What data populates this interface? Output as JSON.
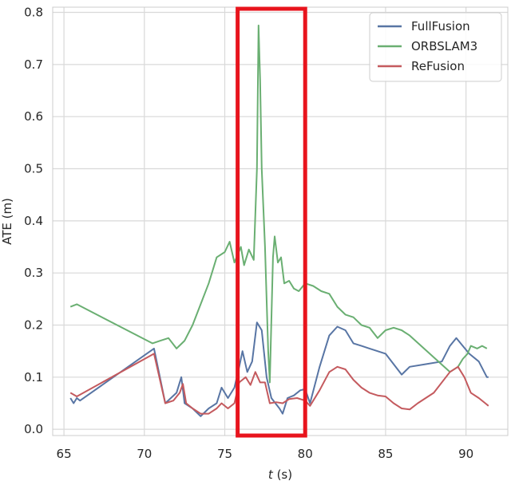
{
  "chart_data": {
    "type": "line",
    "title": "",
    "xlabel": "t (s)",
    "ylabel": "ATE (m)",
    "xlim": [
      64.3,
      92.6
    ],
    "ylim": [
      -0.012,
      0.81
    ],
    "xticks": [
      65,
      70,
      75,
      80,
      85,
      90
    ],
    "yticks": [
      0.0,
      0.1,
      0.2,
      0.3,
      0.4,
      0.5,
      0.6,
      0.7,
      0.8
    ],
    "xtick_labels": [
      "65",
      "70",
      "75",
      "80",
      "85",
      "90"
    ],
    "ytick_labels": [
      "0.0",
      "0.1",
      "0.2",
      "0.3",
      "0.4",
      "0.5",
      "0.6",
      "0.7",
      "0.8"
    ],
    "grid": true,
    "legend_position": "top-right",
    "highlight_box": {
      "x_range": [
        75.8,
        80.0
      ],
      "color": "#e8141d"
    },
    "series": [
      {
        "name": "FullFusion",
        "color": "#5875a4",
        "points": [
          [
            65.4,
            0.06
          ],
          [
            65.6,
            0.05
          ],
          [
            65.8,
            0.06
          ],
          [
            66.0,
            0.055
          ],
          [
            70.6,
            0.155
          ],
          [
            71.3,
            0.05
          ],
          [
            72.0,
            0.07
          ],
          [
            72.3,
            0.1
          ],
          [
            72.5,
            0.05
          ],
          [
            73.0,
            0.04
          ],
          [
            73.5,
            0.025
          ],
          [
            74.0,
            0.04
          ],
          [
            74.5,
            0.05
          ],
          [
            74.8,
            0.08
          ],
          [
            75.2,
            0.06
          ],
          [
            75.6,
            0.08
          ],
          [
            75.9,
            0.12
          ],
          [
            76.1,
            0.15
          ],
          [
            76.4,
            0.11
          ],
          [
            76.7,
            0.13
          ],
          [
            77.0,
            0.205
          ],
          [
            77.3,
            0.19
          ],
          [
            77.6,
            0.1
          ],
          [
            77.9,
            0.06
          ],
          [
            78.4,
            0.04
          ],
          [
            78.6,
            0.03
          ],
          [
            78.9,
            0.06
          ],
          [
            79.3,
            0.065
          ],
          [
            79.7,
            0.075
          ],
          [
            80.0,
            0.077
          ],
          [
            80.3,
            0.05
          ],
          [
            80.9,
            0.12
          ],
          [
            81.5,
            0.18
          ],
          [
            82.0,
            0.197
          ],
          [
            82.5,
            0.19
          ],
          [
            83.0,
            0.165
          ],
          [
            83.5,
            0.16
          ],
          [
            84.0,
            0.155
          ],
          [
            84.5,
            0.15
          ],
          [
            85.0,
            0.145
          ],
          [
            85.5,
            0.125
          ],
          [
            86.0,
            0.105
          ],
          [
            86.5,
            0.12
          ],
          [
            87.5,
            0.125
          ],
          [
            88.5,
            0.13
          ],
          [
            89.0,
            0.16
          ],
          [
            89.4,
            0.175
          ],
          [
            89.8,
            0.16
          ],
          [
            90.2,
            0.145
          ],
          [
            90.8,
            0.13
          ],
          [
            91.3,
            0.1
          ],
          [
            91.4,
            0.1
          ]
        ]
      },
      {
        "name": "ORBSLAM3",
        "color": "#6aaf72",
        "points": [
          [
            65.4,
            0.235
          ],
          [
            65.8,
            0.24
          ],
          [
            70.5,
            0.165
          ],
          [
            71.0,
            0.17
          ],
          [
            71.5,
            0.175
          ],
          [
            72.0,
            0.155
          ],
          [
            72.5,
            0.17
          ],
          [
            73.0,
            0.2
          ],
          [
            73.5,
            0.24
          ],
          [
            74.0,
            0.28
          ],
          [
            74.5,
            0.33
          ],
          [
            75.0,
            0.34
          ],
          [
            75.3,
            0.36
          ],
          [
            75.6,
            0.32
          ],
          [
            76.0,
            0.35
          ],
          [
            76.2,
            0.315
          ],
          [
            76.5,
            0.345
          ],
          [
            76.8,
            0.325
          ],
          [
            77.0,
            0.5
          ],
          [
            77.1,
            0.775
          ],
          [
            77.2,
            0.67
          ],
          [
            77.3,
            0.5
          ],
          [
            77.5,
            0.35
          ],
          [
            77.7,
            0.15
          ],
          [
            77.8,
            0.09
          ],
          [
            78.0,
            0.33
          ],
          [
            78.1,
            0.37
          ],
          [
            78.3,
            0.32
          ],
          [
            78.5,
            0.33
          ],
          [
            78.7,
            0.28
          ],
          [
            79.0,
            0.285
          ],
          [
            79.3,
            0.27
          ],
          [
            79.6,
            0.265
          ],
          [
            80.0,
            0.28
          ],
          [
            80.5,
            0.275
          ],
          [
            81.0,
            0.265
          ],
          [
            81.5,
            0.26
          ],
          [
            82.0,
            0.235
          ],
          [
            82.5,
            0.22
          ],
          [
            83.0,
            0.215
          ],
          [
            83.5,
            0.2
          ],
          [
            84.0,
            0.195
          ],
          [
            84.5,
            0.175
          ],
          [
            85.0,
            0.19
          ],
          [
            85.5,
            0.195
          ],
          [
            86.0,
            0.19
          ],
          [
            86.5,
            0.18
          ],
          [
            89.0,
            0.11
          ],
          [
            89.5,
            0.12
          ],
          [
            89.8,
            0.135
          ],
          [
            90.1,
            0.145
          ],
          [
            90.3,
            0.16
          ],
          [
            90.7,
            0.155
          ],
          [
            91.0,
            0.16
          ],
          [
            91.3,
            0.155
          ]
        ]
      },
      {
        "name": "ReFusion",
        "color": "#c45a5e",
        "points": [
          [
            65.4,
            0.07
          ],
          [
            65.8,
            0.063
          ],
          [
            70.6,
            0.145
          ],
          [
            71.3,
            0.05
          ],
          [
            71.8,
            0.055
          ],
          [
            72.2,
            0.07
          ],
          [
            72.4,
            0.087
          ],
          [
            72.6,
            0.05
          ],
          [
            73.0,
            0.04
          ],
          [
            73.5,
            0.03
          ],
          [
            74.0,
            0.03
          ],
          [
            74.5,
            0.04
          ],
          [
            74.8,
            0.05
          ],
          [
            75.2,
            0.04
          ],
          [
            75.6,
            0.05
          ],
          [
            75.9,
            0.09
          ],
          [
            76.3,
            0.1
          ],
          [
            76.6,
            0.085
          ],
          [
            76.9,
            0.11
          ],
          [
            77.2,
            0.09
          ],
          [
            77.5,
            0.09
          ],
          [
            77.8,
            0.05
          ],
          [
            78.2,
            0.052
          ],
          [
            78.6,
            0.05
          ],
          [
            79.0,
            0.058
          ],
          [
            79.5,
            0.06
          ],
          [
            80.0,
            0.055
          ],
          [
            80.3,
            0.045
          ],
          [
            80.9,
            0.075
          ],
          [
            81.5,
            0.11
          ],
          [
            82.0,
            0.12
          ],
          [
            82.5,
            0.115
          ],
          [
            83.0,
            0.095
          ],
          [
            83.5,
            0.08
          ],
          [
            84.0,
            0.07
          ],
          [
            84.5,
            0.065
          ],
          [
            85.0,
            0.063
          ],
          [
            85.5,
            0.05
          ],
          [
            86.0,
            0.04
          ],
          [
            86.5,
            0.038
          ],
          [
            87.0,
            0.05
          ],
          [
            88.0,
            0.07
          ],
          [
            89.0,
            0.11
          ],
          [
            89.5,
            0.12
          ],
          [
            89.9,
            0.1
          ],
          [
            90.3,
            0.07
          ],
          [
            90.8,
            0.06
          ],
          [
            91.2,
            0.05
          ],
          [
            91.4,
            0.045
          ]
        ]
      }
    ]
  }
}
